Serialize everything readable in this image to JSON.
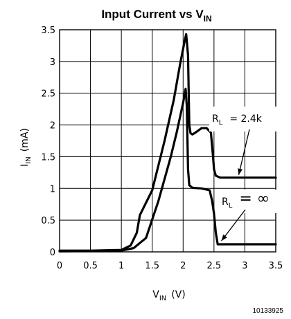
{
  "chart_data": {
    "type": "line",
    "title": {
      "main": "Input Current vs V",
      "sub": "IN"
    },
    "xlabel": {
      "main": "V",
      "sub": "IN",
      "unit": "(V)"
    },
    "ylabel": {
      "main": "I",
      "sub": "IN",
      "unit": "(mA)"
    },
    "xlim": [
      0,
      3.5
    ],
    "ylim": [
      0,
      3.5
    ],
    "grid": true,
    "x_ticks": [
      "0",
      "0.5",
      "1",
      "1.5",
      "2",
      "2.5",
      "3",
      "3.5"
    ],
    "y_ticks": [
      "0",
      "0.5",
      "1",
      "1.5",
      "2",
      "2.5",
      "3",
      "3.5"
    ],
    "series": [
      {
        "label": {
          "main": "R",
          "sub": "L",
          "value": "= 2.4k"
        },
        "x": [
          0,
          0.5,
          1.0,
          1.15,
          1.25,
          1.3,
          1.5,
          1.7,
          1.85,
          1.95,
          2.02,
          2.05,
          2.08,
          2.1,
          2.12,
          2.15,
          2.2,
          2.3,
          2.38,
          2.45,
          2.48,
          2.5,
          2.53,
          2.6,
          3.0,
          3.5
        ],
        "y": [
          0.02,
          0.02,
          0.03,
          0.1,
          0.3,
          0.58,
          0.97,
          1.75,
          2.4,
          2.95,
          3.3,
          3.43,
          3.1,
          2.0,
          1.87,
          1.85,
          1.88,
          1.95,
          1.95,
          1.88,
          1.55,
          1.3,
          1.2,
          1.17,
          1.17,
          1.17
        ]
      },
      {
        "label": {
          "main": "R",
          "sub": "L",
          "value": "= ∞"
        },
        "x": [
          0,
          1.0,
          1.2,
          1.4,
          1.6,
          1.8,
          1.9,
          2.0,
          2.04,
          2.06,
          2.08,
          2.1,
          2.15,
          2.3,
          2.43,
          2.47,
          2.5,
          2.53,
          2.56,
          3.0,
          3.5
        ],
        "y": [
          0.01,
          0.02,
          0.06,
          0.22,
          0.8,
          1.5,
          1.9,
          2.35,
          2.57,
          2.3,
          1.3,
          1.05,
          1.01,
          1.0,
          0.97,
          0.8,
          0.6,
          0.3,
          0.12,
          0.12,
          0.12
        ]
      }
    ],
    "footnote": "10133925"
  }
}
